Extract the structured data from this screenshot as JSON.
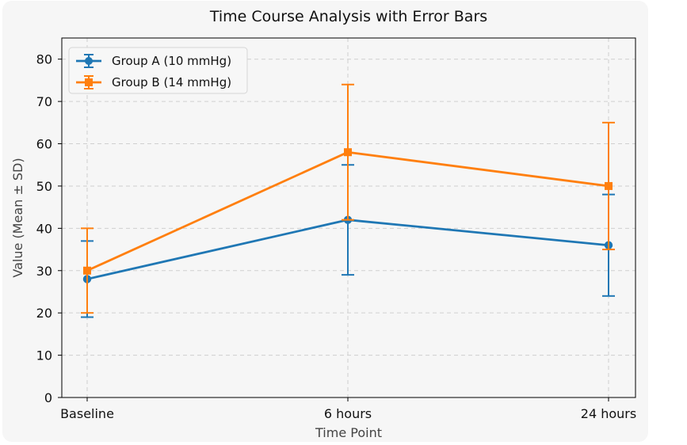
{
  "chart_data": {
    "type": "line",
    "title": "Time Course Analysis with Error Bars",
    "xlabel": "Time Point",
    "ylabel": "Value (Mean ± SD)",
    "categories": [
      "Baseline",
      "6 hours",
      "24 hours"
    ],
    "ylim": [
      0,
      85
    ],
    "yticks": [
      0,
      10,
      20,
      30,
      40,
      50,
      60,
      70,
      80
    ],
    "grid": true,
    "legend_position": "top-left",
    "series": [
      {
        "name": "Group A (10 mmHg)",
        "values": [
          28,
          42,
          36
        ],
        "errors": [
          9,
          13,
          12
        ],
        "color": "#1f77b4",
        "marker": "circle"
      },
      {
        "name": "Group B (14 mmHg)",
        "values": [
          30,
          58,
          50
        ],
        "errors": [
          10,
          16,
          15
        ],
        "color": "#ff7f0e",
        "marker": "square"
      }
    ]
  }
}
